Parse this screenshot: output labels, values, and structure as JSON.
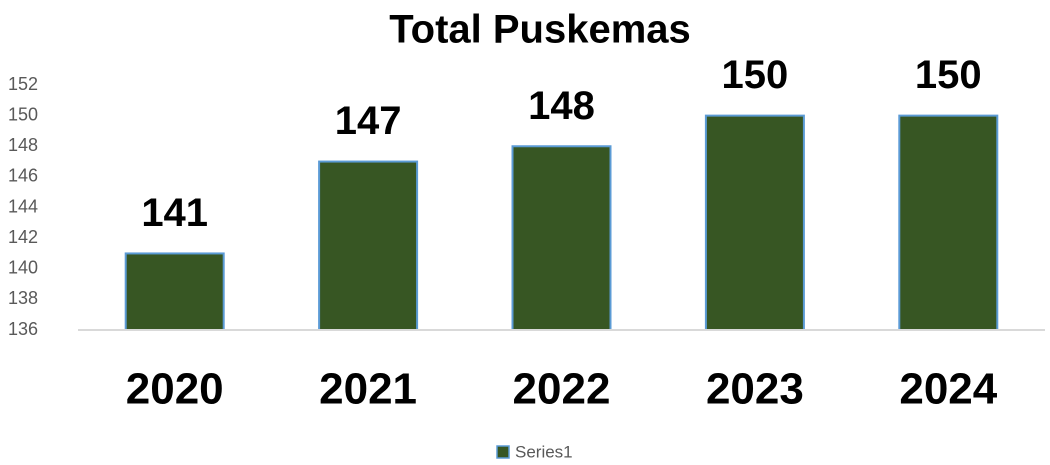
{
  "chart_data": {
    "type": "bar",
    "title": "Total Puskemas",
    "categories": [
      "2020",
      "2021",
      "2022",
      "2023",
      "2024"
    ],
    "series": [
      {
        "name": "Series1",
        "color": "#375623",
        "values": [
          141,
          147,
          148,
          150,
          150
        ]
      }
    ],
    "ylim": [
      136,
      152
    ],
    "yticks": [
      136,
      138,
      140,
      142,
      144,
      146,
      148,
      150,
      152
    ],
    "grid": false,
    "data_labels": true,
    "legend": "bottom"
  }
}
